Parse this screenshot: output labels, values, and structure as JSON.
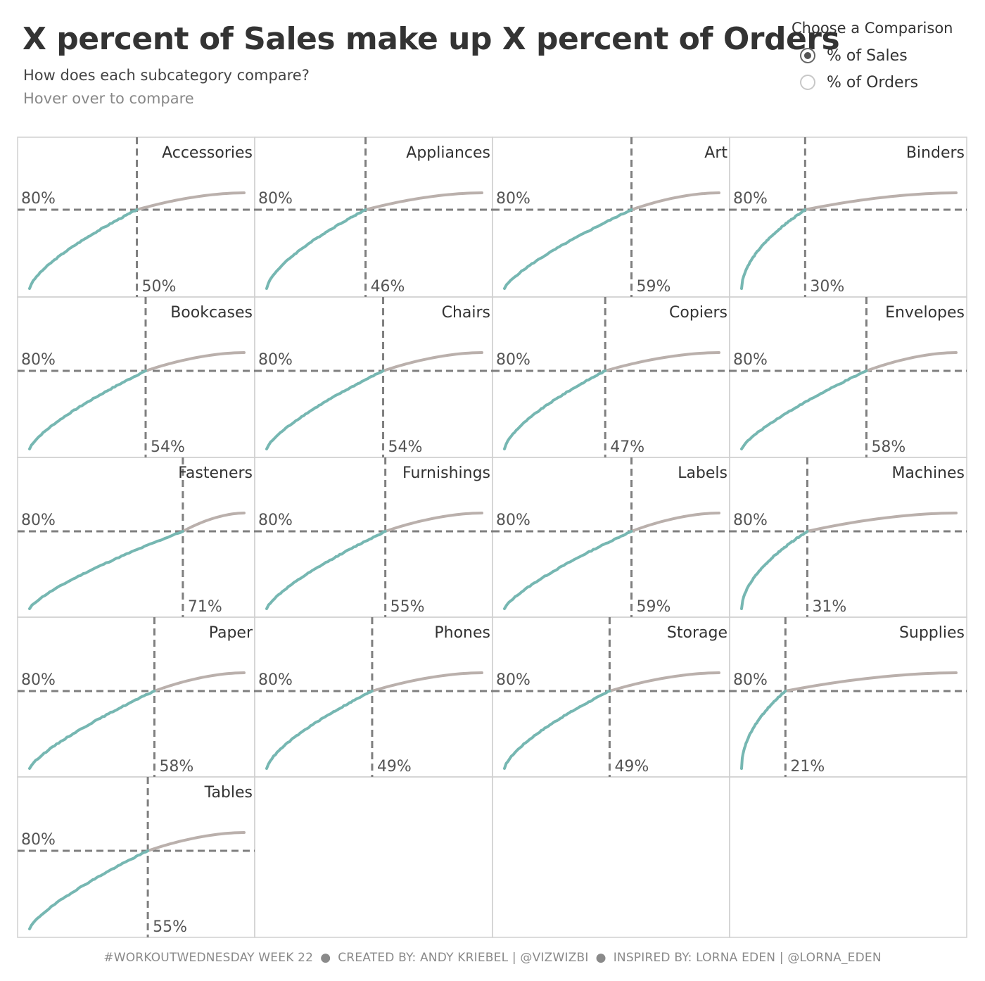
{
  "header": {
    "title": "X percent of Sales make up X percent of Orders",
    "subtitle": "How does each subcategory compare?",
    "hint": "Hover over to compare"
  },
  "parameter": {
    "title": "Choose a Comparison",
    "options": [
      {
        "label": "% of Sales",
        "selected": true
      },
      {
        "label": "% of Orders",
        "selected": false
      }
    ]
  },
  "footer": {
    "parts": [
      "#WORKOUTWEDNESDAY WEEK 22",
      "CREATED BY: ANDY KRIEBEL | @VIZWIZBI",
      "INSPIRED BY: LORNA EDEN | @LORNA_EDEN"
    ],
    "separator": "●"
  },
  "colors": {
    "below_threshold": "#76b7b2",
    "above_threshold": "#bab0ac",
    "reference_line": "#7f7f7f",
    "grid_border": "#d0d0d0"
  },
  "chart_data": {
    "type": "line",
    "description_of_axes": "x: cumulative % of orders; y: cumulative % of sales",
    "threshold_y": 80,
    "threshold_label": "80%",
    "xlim": [
      0,
      100
    ],
    "ylim": [
      0,
      100
    ],
    "panels": [
      {
        "name": "Accessories",
        "x_at_80": 50,
        "x_label": "50%"
      },
      {
        "name": "Appliances",
        "x_at_80": 46,
        "x_label": "46%"
      },
      {
        "name": "Art",
        "x_at_80": 59,
        "x_label": "59%"
      },
      {
        "name": "Binders",
        "x_at_80": 30,
        "x_label": "30%"
      },
      {
        "name": "Bookcases",
        "x_at_80": 54,
        "x_label": "54%"
      },
      {
        "name": "Chairs",
        "x_at_80": 54,
        "x_label": "54%"
      },
      {
        "name": "Copiers",
        "x_at_80": 47,
        "x_label": "47%"
      },
      {
        "name": "Envelopes",
        "x_at_80": 58,
        "x_label": "58%"
      },
      {
        "name": "Fasteners",
        "x_at_80": 71,
        "x_label": "71%"
      },
      {
        "name": "Furnishings",
        "x_at_80": 55,
        "x_label": "55%"
      },
      {
        "name": "Labels",
        "x_at_80": 59,
        "x_label": "59%"
      },
      {
        "name": "Machines",
        "x_at_80": 31,
        "x_label": "31%"
      },
      {
        "name": "Paper",
        "x_at_80": 58,
        "x_label": "58%"
      },
      {
        "name": "Phones",
        "x_at_80": 49,
        "x_label": "49%"
      },
      {
        "name": "Storage",
        "x_at_80": 49,
        "x_label": "49%"
      },
      {
        "name": "Supplies",
        "x_at_80": 21,
        "x_label": "21%"
      },
      {
        "name": "Tables",
        "x_at_80": 55,
        "x_label": "55%"
      }
    ]
  }
}
